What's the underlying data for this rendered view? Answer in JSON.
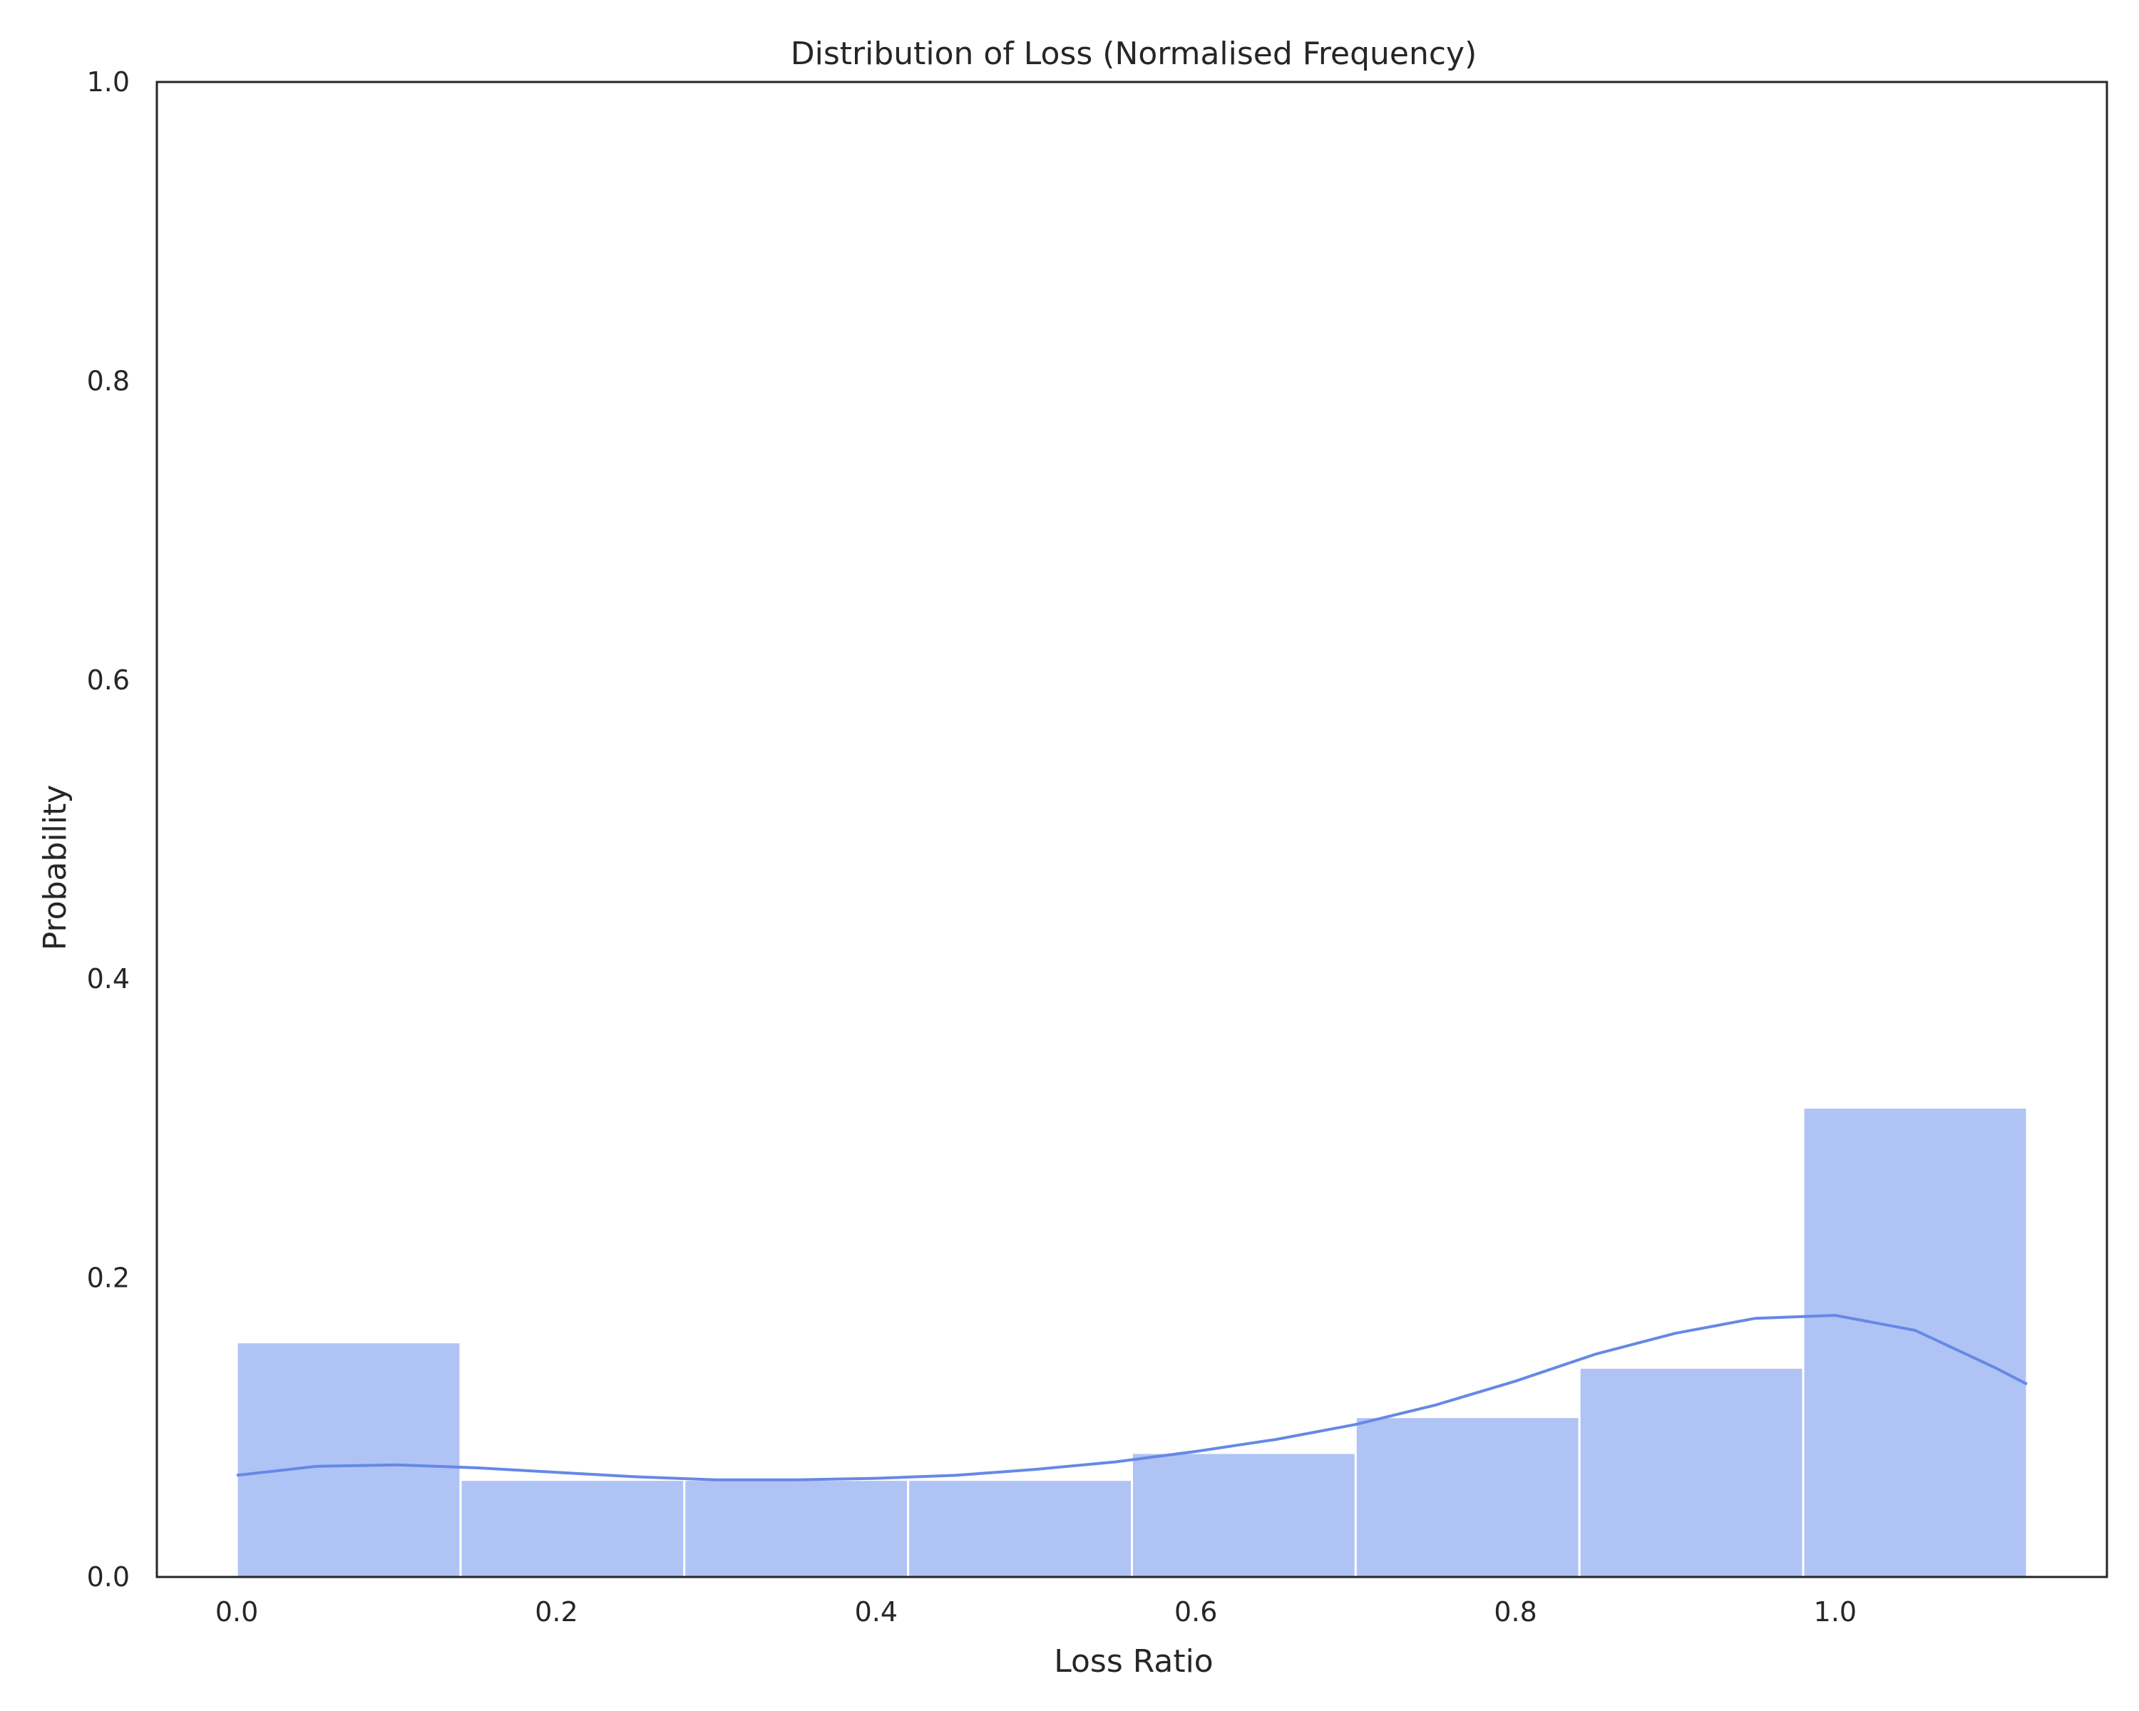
{
  "chart_data": {
    "type": "bar",
    "title": "Distribution of Loss (Normalised Frequency)",
    "xlabel": "Loss Ratio",
    "ylabel": "Probability",
    "xlim": [
      -0.05,
      1.17
    ],
    "ylim": [
      0,
      1.0
    ],
    "xticks": [
      "0.0",
      "0.2",
      "0.4",
      "0.6",
      "0.8",
      "1.0"
    ],
    "yticks": [
      "0.0",
      "0.2",
      "0.4",
      "0.6",
      "0.8",
      "1.0"
    ],
    "grid": false,
    "bins": [
      {
        "x0": 0.0,
        "x1": 0.14,
        "value": 0.157
      },
      {
        "x0": 0.14,
        "x1": 0.28,
        "value": 0.065
      },
      {
        "x0": 0.28,
        "x1": 0.42,
        "value": 0.065
      },
      {
        "x0": 0.42,
        "x1": 0.56,
        "value": 0.065
      },
      {
        "x0": 0.56,
        "x1": 0.7,
        "value": 0.083
      },
      {
        "x0": 0.7,
        "x1": 0.84,
        "value": 0.107
      },
      {
        "x0": 0.84,
        "x1": 0.98,
        "value": 0.14
      },
      {
        "x0": 0.98,
        "x1": 1.12,
        "value": 0.314
      }
    ],
    "kde": {
      "x": [
        0.0,
        0.05,
        0.1,
        0.15,
        0.2,
        0.25,
        0.3,
        0.35,
        0.4,
        0.45,
        0.5,
        0.55,
        0.6,
        0.65,
        0.7,
        0.75,
        0.8,
        0.85,
        0.9,
        0.95,
        1.0,
        1.05,
        1.1,
        1.12
      ],
      "y": [
        0.068,
        0.074,
        0.075,
        0.073,
        0.07,
        0.067,
        0.065,
        0.065,
        0.066,
        0.068,
        0.072,
        0.077,
        0.084,
        0.092,
        0.102,
        0.115,
        0.131,
        0.149,
        0.163,
        0.173,
        0.175,
        0.165,
        0.14,
        0.129
      ]
    },
    "colors": {
      "bar": "#b0c3f5",
      "line": "#6688e6",
      "axis": "#262626"
    }
  }
}
